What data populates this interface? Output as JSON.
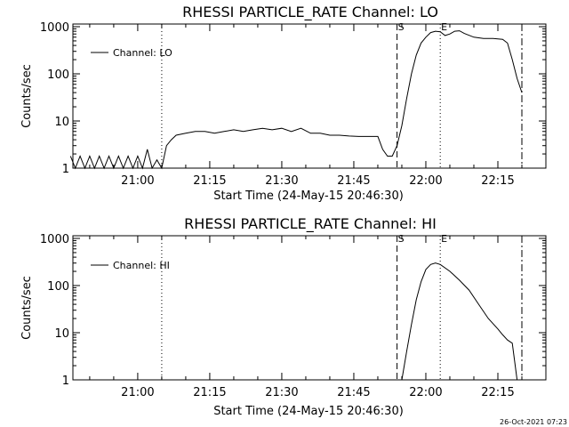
{
  "footer": {
    "timestamp": "26-Oct-2021 07:23"
  },
  "chart_data": [
    {
      "type": "line",
      "title": "RHESSI PARTICLE_RATE Channel: LO",
      "xlabel": "Start Time (24-May-15 20:46:30)",
      "ylabel": "Counts/sec",
      "y_scale": "log",
      "ylim": [
        1,
        1000
      ],
      "xlim_minutes_after_2046_30": [
        0,
        98.5
      ],
      "x_ticks": [
        "21:00",
        "21:15",
        "21:30",
        "21:45",
        "22:00",
        "22:15"
      ],
      "y_ticks": [
        "1",
        "10",
        "100",
        "1000"
      ],
      "grid": false,
      "legend": {
        "position": "top-left",
        "entries": [
          "Channel: LO"
        ]
      },
      "markers": [
        {
          "label": "",
          "time": "21:05",
          "style": "dotted"
        },
        {
          "label": "S",
          "time": "21:54",
          "style": "dashed"
        },
        {
          "label": "E",
          "time": "22:03",
          "style": "dotted"
        },
        {
          "label": "",
          "time": "22:20",
          "style": "dashdot"
        }
      ],
      "series": [
        {
          "name": "Channel: LO",
          "x": [
            "20:46",
            "20:47",
            "20:48",
            "20:49",
            "20:50",
            "20:51",
            "20:52",
            "20:53",
            "20:54",
            "20:55",
            "20:56",
            "20:57",
            "20:58",
            "20:59",
            "21:00",
            "21:01",
            "21:02",
            "21:03",
            "21:04",
            "21:05",
            "21:06",
            "21:07",
            "21:08",
            "21:10",
            "21:12",
            "21:14",
            "21:16",
            "21:18",
            "21:20",
            "21:22",
            "21:24",
            "21:26",
            "21:28",
            "21:30",
            "21:32",
            "21:34",
            "21:36",
            "21:38",
            "21:40",
            "21:42",
            "21:44",
            "21:46",
            "21:48",
            "21:50",
            "21:51",
            "21:52",
            "21:53",
            "21:54",
            "21:55",
            "21:56",
            "21:57",
            "21:58",
            "21:59",
            "22:00",
            "22:01",
            "22:02",
            "22:03",
            "22:04",
            "22:05",
            "22:06",
            "22:07",
            "22:08",
            "22:10",
            "22:12",
            "22:14",
            "22:16",
            "22:17",
            "22:18",
            "22:19",
            "22:20"
          ],
          "y": [
            1.8,
            1,
            1.8,
            1,
            1.8,
            1,
            1.8,
            1,
            1.8,
            1,
            1.8,
            1,
            1.8,
            1,
            1.8,
            1,
            2.5,
            1,
            1.5,
            1,
            3,
            4,
            5,
            5.5,
            6,
            6,
            5.5,
            6,
            6.5,
            6,
            6.5,
            7,
            6.5,
            7,
            6,
            7,
            5.5,
            5.5,
            5,
            5,
            4.8,
            4.7,
            4.7,
            4.7,
            2.5,
            1.8,
            1.8,
            3,
            8,
            30,
            100,
            250,
            450,
            600,
            750,
            800,
            780,
            650,
            700,
            800,
            820,
            720,
            600,
            560,
            560,
            540,
            450,
            200,
            80,
            40
          ]
        }
      ]
    },
    {
      "type": "line",
      "title": "RHESSI PARTICLE_RATE Channel: HI",
      "xlabel": "Start Time (24-May-15 20:46:30)",
      "ylabel": "Counts/sec",
      "y_scale": "log",
      "ylim": [
        1,
        1000
      ],
      "xlim_minutes_after_2046_30": [
        0,
        98.5
      ],
      "x_ticks": [
        "21:00",
        "21:15",
        "21:30",
        "21:45",
        "22:00",
        "22:15"
      ],
      "y_ticks": [
        "1",
        "10",
        "100",
        "1000"
      ],
      "grid": false,
      "legend": {
        "position": "top-left",
        "entries": [
          "Channel: HI"
        ]
      },
      "markers": [
        {
          "label": "",
          "time": "21:05",
          "style": "dotted"
        },
        {
          "label": "S",
          "time": "21:54",
          "style": "dashed"
        },
        {
          "label": "E",
          "time": "22:03",
          "style": "dotted"
        },
        {
          "label": "",
          "time": "22:20",
          "style": "dashdot"
        }
      ],
      "series": [
        {
          "name": "Channel: HI",
          "x": [
            "21:55",
            "21:56",
            "21:57",
            "21:58",
            "21:59",
            "22:00",
            "22:01",
            "22:02",
            "22:03",
            "22:05",
            "22:07",
            "22:09",
            "22:11",
            "22:13",
            "22:15",
            "22:16",
            "22:17",
            "22:18",
            "22:19"
          ],
          "y": [
            1,
            4,
            15,
            50,
            120,
            220,
            280,
            300,
            280,
            200,
            130,
            80,
            40,
            20,
            12,
            9,
            7,
            6,
            1
          ]
        }
      ]
    }
  ]
}
